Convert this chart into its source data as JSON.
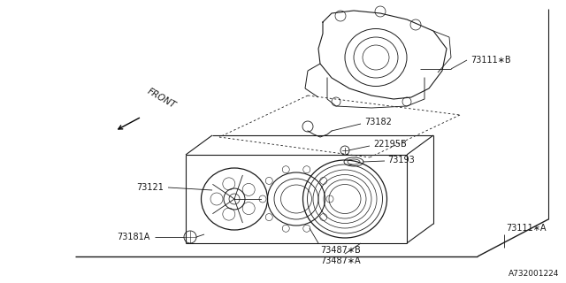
{
  "bg_color": "#ffffff",
  "line_color": "#1a1a1a",
  "text_color": "#1a1a1a",
  "part_number": "A732001224",
  "front_label": "FRONT",
  "font_size": 7.0,
  "part_num_font_size": 6.5,
  "labels": {
    "73111B": "73111∗B",
    "73182": "73182",
    "22195B": "22195B",
    "73193": "73193",
    "73121": "73121",
    "73487B": "73487∗B",
    "73181A": "73181A",
    "73487A": "73487∗A",
    "73111A": "73111∗A"
  }
}
